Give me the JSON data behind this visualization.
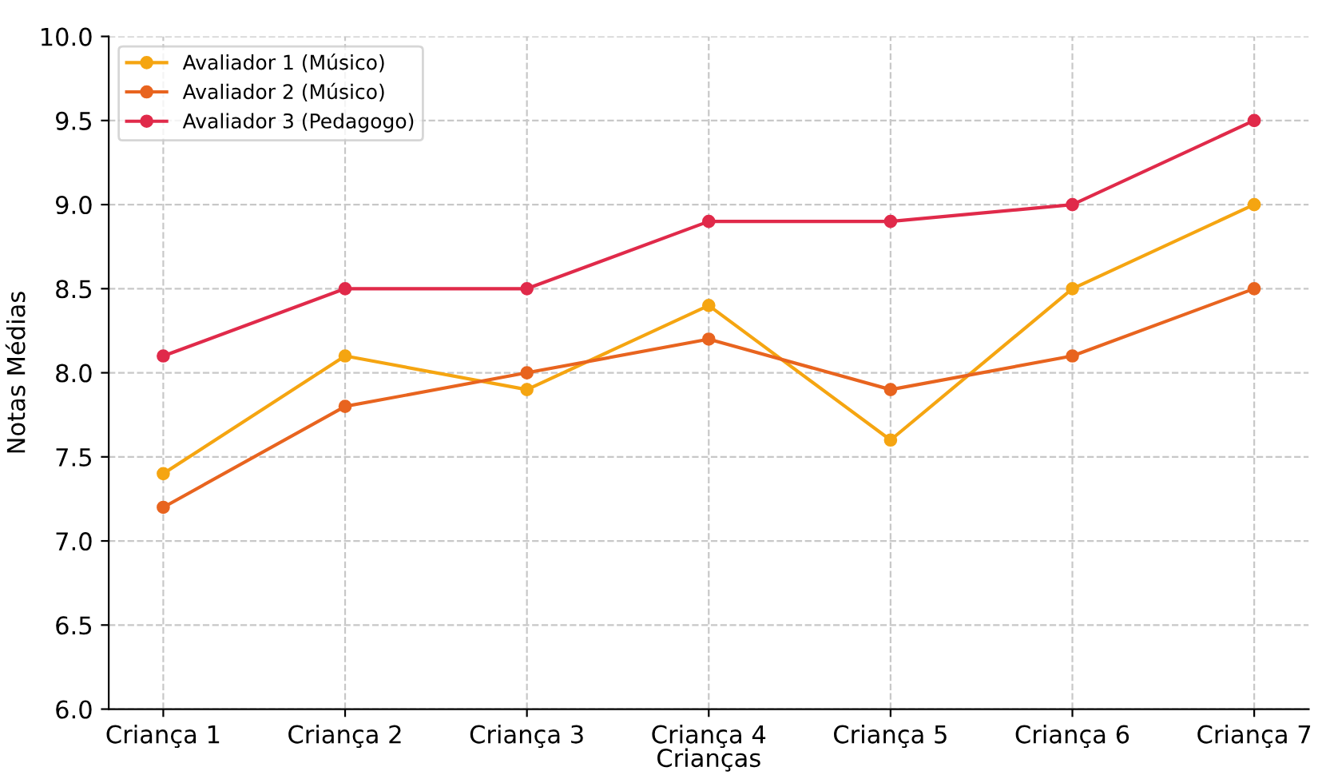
{
  "chart_data": {
    "type": "line",
    "xlabel": "Crianças",
    "ylabel": "Notas Médias",
    "categories": [
      "Criança 1",
      "Criança 2",
      "Criança 3",
      "Criança 4",
      "Criança 5",
      "Criança 6",
      "Criança 7"
    ],
    "series": [
      {
        "name": "Avaliador 1 (Músico)",
        "color": "#f5a511",
        "values": [
          7.4,
          8.1,
          7.9,
          8.4,
          7.6,
          8.5,
          9.0
        ]
      },
      {
        "name": "Avaliador 2 (Músico)",
        "color": "#e8641f",
        "values": [
          7.2,
          7.8,
          8.0,
          8.2,
          7.9,
          8.1,
          8.5
        ]
      },
      {
        "name": "Avaliador 3 (Pedagogo)",
        "color": "#e02a4a",
        "values": [
          8.1,
          8.5,
          8.5,
          8.9,
          8.9,
          9.0,
          9.5
        ]
      }
    ],
    "ylim": [
      6.0,
      10.0
    ],
    "yticks": [
      {
        "value": 6.0,
        "label": "6.0"
      },
      {
        "value": 6.5,
        "label": "6.5"
      },
      {
        "value": 7.0,
        "label": "7.0"
      },
      {
        "value": 7.5,
        "label": "7.5"
      },
      {
        "value": 8.0,
        "label": "8.0"
      },
      {
        "value": 8.5,
        "label": "8.5"
      },
      {
        "value": 9.0,
        "label": "9.0"
      },
      {
        "value": 9.5,
        "label": "9.5"
      },
      {
        "value": 10.0,
        "label": "10.0"
      }
    ],
    "grid": true,
    "legend": "top left",
    "marker": "circle",
    "line_style": "solid"
  }
}
